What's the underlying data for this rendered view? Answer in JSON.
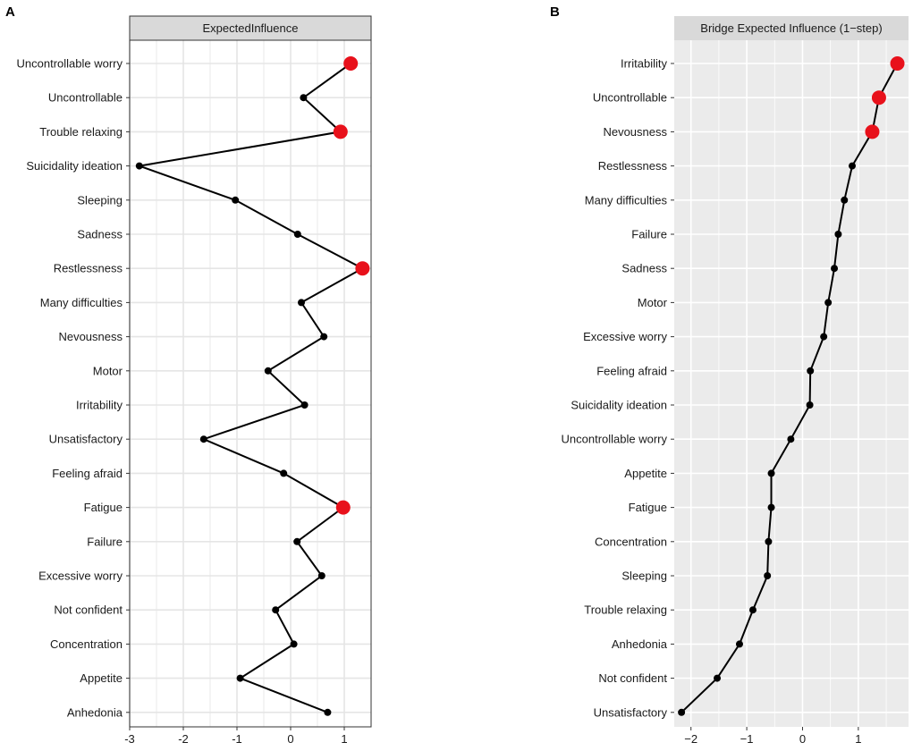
{
  "chart_data": [
    {
      "panel": "A",
      "type": "line",
      "title": "ExpectedInfluence",
      "xlabel": "",
      "ylabel": "",
      "xlim": [
        -3.0,
        1.5
      ],
      "xticks": [
        -3,
        -2,
        -1,
        0,
        1
      ],
      "xtick_labels": [
        "-3",
        "-2",
        "-1",
        "0",
        "1"
      ],
      "background": "#ffffff",
      "grid": true,
      "categories": [
        "Uncontrollable worry",
        "Uncontrollable",
        "Trouble relaxing",
        "Suicidality ideation",
        "Sleeping",
        "Sadness",
        "Restlessness",
        "Many difficulties",
        "Nevousness",
        "Motor",
        "Irritability",
        "Unsatisfactory",
        "Feeling afraid",
        "Fatigue",
        "Failure",
        "Excessive worry",
        "Not confident",
        "Concentration",
        "Appetite",
        "Anhedonia"
      ],
      "values": [
        1.12,
        0.24,
        0.93,
        -2.82,
        -1.03,
        0.13,
        1.34,
        0.2,
        0.62,
        -0.42,
        0.26,
        -1.62,
        -0.13,
        0.98,
        0.12,
        0.58,
        -0.28,
        0.06,
        -0.94,
        0.69
      ],
      "highlight": [
        true,
        false,
        true,
        false,
        false,
        false,
        true,
        false,
        false,
        false,
        false,
        false,
        false,
        true,
        false,
        false,
        false,
        false,
        false,
        false
      ]
    },
    {
      "panel": "B",
      "type": "line",
      "title": "Bridge Expected Influence (1−step)",
      "xlabel": "",
      "ylabel": "",
      "xlim": [
        -2.3,
        1.9
      ],
      "xticks": [
        -2,
        -1,
        0,
        1
      ],
      "xtick_labels": [
        "−2",
        "−1",
        "0",
        "1"
      ],
      "background": "#ebebeb",
      "grid": true,
      "categories": [
        "Irritability",
        "Uncontrollable",
        "Nevousness",
        "Restlessness",
        "Many difficulties",
        "Failure",
        "Sadness",
        "Motor",
        "Excessive worry",
        "Feeling afraid",
        "Suicidality ideation",
        "Uncontrollable worry",
        "Appetite",
        "Fatigue",
        "Concentration",
        "Sleeping",
        "Trouble relaxing",
        "Anhedonia",
        "Not confident",
        "Unsatisfactory"
      ],
      "values": [
        1.7,
        1.37,
        1.25,
        0.89,
        0.75,
        0.64,
        0.57,
        0.46,
        0.38,
        0.14,
        0.13,
        -0.21,
        -0.56,
        -0.56,
        -0.61,
        -0.63,
        -0.89,
        -1.13,
        -1.53,
        -2.17
      ],
      "highlight": [
        true,
        true,
        true,
        false,
        false,
        false,
        false,
        false,
        false,
        false,
        false,
        false,
        false,
        false,
        false,
        false,
        false,
        false,
        false,
        false
      ]
    }
  ],
  "colors": {
    "highlight": "#e8111b",
    "point": "#000000",
    "line": "#000000",
    "strip": "#d9d9d9",
    "grid_a": "#e5e5e5",
    "grid_b": "#ffffff"
  }
}
